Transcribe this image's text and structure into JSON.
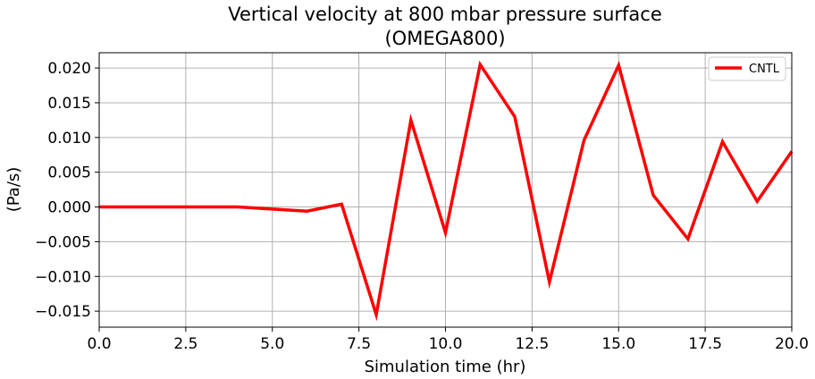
{
  "chart_data": {
    "type": "line",
    "title_line1": "Vertical velocity at 800 mbar pressure surface",
    "title_line2": "(OMEGA800)",
    "xlabel": "Simulation time (hr)",
    "ylabel": "(Pa/s)",
    "xlim": [
      0,
      20
    ],
    "ylim": [
      -0.0173,
      0.0222
    ],
    "grid": true,
    "legend_position": "top-right",
    "x_ticks": [
      0,
      2.5,
      5,
      7.5,
      10,
      12.5,
      15,
      17.5,
      20
    ],
    "x_tick_labels": [
      "0.0",
      "2.5",
      "5.0",
      "7.5",
      "10.0",
      "12.5",
      "15.0",
      "17.5",
      "20.0"
    ],
    "y_ticks": [
      -0.015,
      -0.01,
      -0.005,
      0,
      0.005,
      0.01,
      0.015,
      0.02
    ],
    "y_tick_labels": [
      "−0.015",
      "−0.010",
      "−0.005",
      "0.000",
      "0.005",
      "0.010",
      "0.015",
      "0.020"
    ],
    "series": [
      {
        "name": "CNTL",
        "color": "#ff0000",
        "x": [
          0,
          1,
          2,
          3,
          4,
          5,
          6,
          7,
          8,
          9,
          10,
          11,
          12,
          13,
          14,
          15,
          16,
          17,
          18,
          19,
          20
        ],
        "values": [
          0.0,
          0.0,
          0.0,
          0.0,
          0.0,
          -0.0003,
          -0.0006,
          0.0004,
          -0.0155,
          0.0125,
          -0.0037,
          0.0205,
          0.013,
          -0.0108,
          0.0096,
          0.0204,
          0.0017,
          -0.0046,
          0.0094,
          0.0008,
          0.008
        ]
      }
    ]
  }
}
